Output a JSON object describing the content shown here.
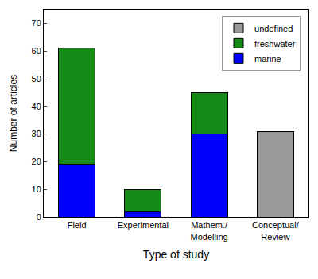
{
  "chart_data": {
    "type": "bar",
    "stacked": true,
    "x_label": "Type of study",
    "y_label": "Number of articles",
    "categories": [
      "Field",
      "Experimental",
      "Mathem./\nModelling",
      "Conceptual/\nReview"
    ],
    "series": [
      {
        "name": "marine",
        "color": "#0000ff",
        "values": [
          19,
          2,
          30,
          null
        ]
      },
      {
        "name": "freshwater",
        "color": "#168a16",
        "values": [
          42,
          8,
          15,
          null
        ]
      },
      {
        "name": "undefined",
        "color": "#999999",
        "values": [
          null,
          null,
          null,
          31
        ]
      }
    ],
    "ylim": [
      0,
      75
    ],
    "yticks": [
      0,
      10,
      20,
      30,
      40,
      50,
      60,
      70
    ],
    "legend": "upper right",
    "grid": false
  }
}
